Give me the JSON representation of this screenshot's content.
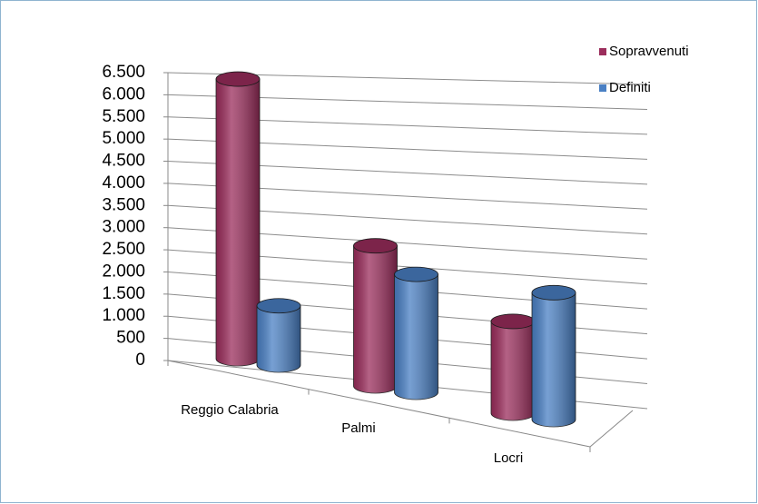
{
  "chart_data": {
    "type": "cylinder",
    "categories": [
      "Reggio Calabria",
      "Palmi",
      "Locri"
    ],
    "series": [
      {
        "name": "Sopravvenuti",
        "color": "#9b2d5c",
        "values": [
          6200,
          3000,
          1900
        ]
      },
      {
        "name": "Definiti",
        "color": "#4a80c4",
        "values": [
          1300,
          2500,
          2600
        ]
      }
    ],
    "ylim": [
      0,
      6500
    ],
    "yticks": [
      0,
      500,
      {
        "value": 1000,
        "label": "1.000"
      },
      {
        "value": 1500,
        "label": "1.500"
      },
      {
        "value": 2000,
        "label": "2.000"
      },
      {
        "value": 2500,
        "label": "2.500"
      },
      {
        "value": 3000,
        "label": "3.000"
      },
      {
        "value": 3500,
        "label": "3.500"
      },
      {
        "value": 4000,
        "label": "4.000"
      },
      {
        "value": 4500,
        "label": "4.500"
      },
      {
        "value": 5000,
        "label": "5.000"
      },
      {
        "value": 5500,
        "label": "5.500"
      },
      {
        "value": 6000,
        "label": "6.000"
      },
      {
        "value": 6500,
        "label": "6.500"
      }
    ],
    "grid": true,
    "legend": "top-right"
  }
}
